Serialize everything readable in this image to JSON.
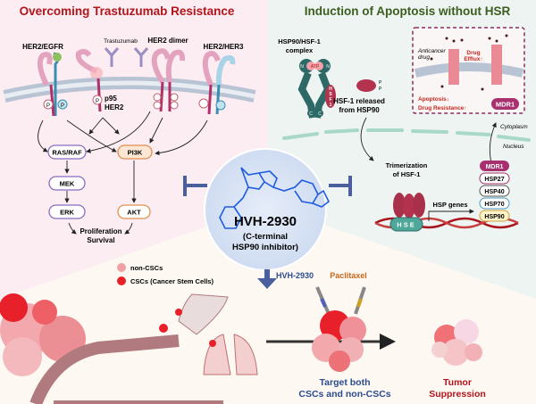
{
  "left_panel": {
    "title": "Overcoming Trastuzumab Resistance",
    "receptors": [
      "HER2/EGFR",
      "Trastuzumab",
      "HER2 dimer",
      "HER2/HER3"
    ],
    "p95": [
      "p95",
      "HER2"
    ],
    "phospho_label": "P",
    "nodes": {
      "ras_raf": "RAS/RAF",
      "pi3k": "PI3K",
      "mek": "MEK",
      "erk": "ERK",
      "akt": "AKT"
    },
    "outcome": [
      "Proliferation",
      "Survival"
    ]
  },
  "right_panel": {
    "title": "Induction of Apoptosis without HSR",
    "complex": [
      "HSP90/HSF-1",
      "complex"
    ],
    "complex_labels": {
      "n": "N",
      "atp": "ATP",
      "c": "C",
      "hsf": "HSF1"
    },
    "released": [
      "HSF-1 released",
      "from HSP90"
    ],
    "inset": {
      "anticancer": [
        "Anticancer",
        "drug"
      ],
      "efflux": [
        "Drug",
        "Efflux↑"
      ],
      "apoptosis": "Apoptosis↓",
      "resistance": "Drug Resistance↑",
      "mdr1": "MDR1"
    },
    "cytoplasm": "Cytoplasm",
    "nucleus": "Nucleus",
    "trimerization": [
      "Trimerization",
      "of HSF-1"
    ],
    "hse": "HSE",
    "hsp_genes": "HSP genes",
    "gene_products": [
      "MDR1",
      "HSP27",
      "HSP40",
      "HSP70",
      "HSP90"
    ]
  },
  "center": {
    "drug_name": "HVH-2930",
    "subtitle": [
      "(C-terminal",
      "HSP90 inhibitor)"
    ]
  },
  "bottom_panel": {
    "legend": [
      "non-CSCs",
      "CSCs (Cancer Stem Cells)"
    ],
    "drugs": [
      "HVH-2930",
      "Paclitaxel"
    ],
    "target": [
      "Target both",
      "CSCs and non-CSCs"
    ],
    "result": [
      "Tumor",
      "Suppression"
    ]
  },
  "colors": {
    "left_bg": "#fbedf1",
    "right_bg": "#eef4f1",
    "bottom_bg": "#fdf8f2",
    "left_title": "#b3141c",
    "right_title": "#3b5e1f",
    "inhibitor": "#4a5f9e",
    "blue_text": "#2b4b8e",
    "orange_text": "#c8661c",
    "red_text": "#b3141c",
    "mdr1": "#a8306f"
  }
}
